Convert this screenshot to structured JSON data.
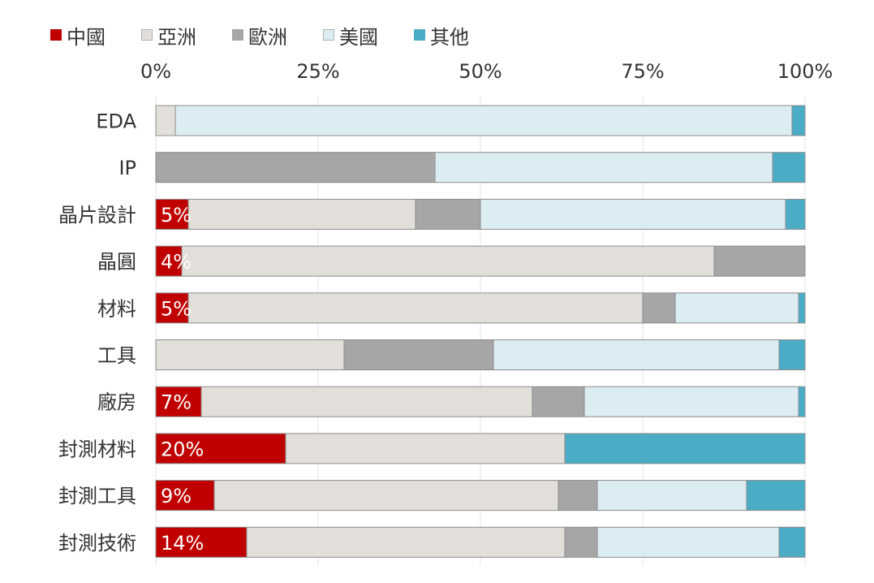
{
  "chart_data": {
    "type": "bar",
    "orientation": "horizontal",
    "stacked": true,
    "percent": true,
    "legend_position": "top-left",
    "grid": true,
    "xlim": [
      0,
      100
    ],
    "x_ticks": [
      "0%",
      "25%",
      "50%",
      "75%",
      "100%"
    ],
    "categories": [
      "EDA",
      "IP",
      "晶片設計",
      "晶圓",
      "材料",
      "工具",
      "廠房",
      "封測材料",
      "封測工具",
      "封測技術"
    ],
    "series": [
      {
        "name": "中國",
        "color": "#c00000",
        "values": [
          0,
          0,
          5,
          4,
          5,
          0,
          7,
          20,
          9,
          14
        ]
      },
      {
        "name": "亞洲",
        "color": "#e2dfda",
        "values": [
          3,
          0,
          35,
          82,
          70,
          29,
          51,
          43,
          53,
          49
        ]
      },
      {
        "name": "歐洲",
        "color": "#a6a6a6",
        "values": [
          0,
          43,
          10,
          14,
          5,
          23,
          8,
          0,
          6,
          5
        ]
      },
      {
        "name": "美國",
        "color": "#dbecf2",
        "values": [
          95,
          52,
          47,
          0,
          19,
          44,
          33,
          0,
          23,
          28
        ]
      },
      {
        "name": "其他",
        "color": "#4bacc6",
        "values": [
          2,
          5,
          3,
          0,
          1,
          4,
          1,
          37,
          9,
          4
        ]
      }
    ],
    "data_labels": [
      "",
      "",
      "5%",
      "4%",
      "5%",
      "",
      "7%",
      "20%",
      "9%",
      "14%"
    ]
  }
}
